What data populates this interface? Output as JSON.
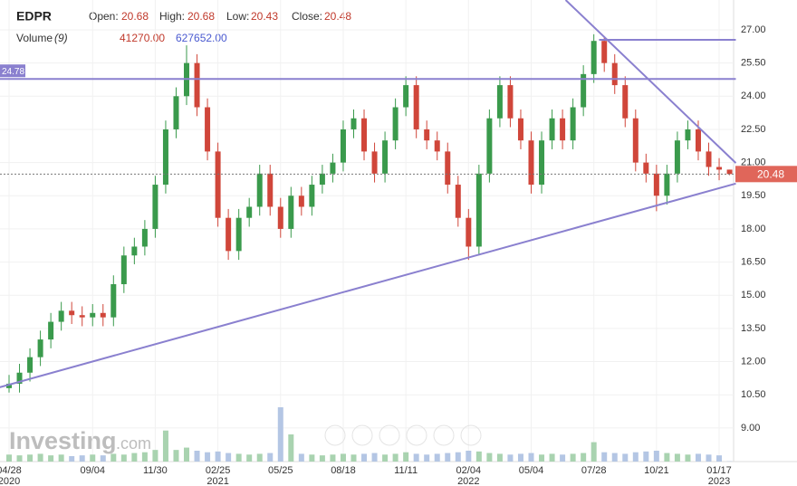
{
  "chart_data": {
    "type": "candlestick",
    "symbol": "EDPR",
    "header_labels": {
      "open": "Open:",
      "high": "High:",
      "low": "Low:",
      "close": "Close:",
      "volume": "Volume",
      "volume_period": "(9)"
    },
    "volume_header": [
      {
        "value": 41270,
        "label": "41270.00"
      },
      {
        "value": 627652,
        "label": "627652.00"
      }
    ],
    "watermark": [
      "Investing",
      ".com"
    ],
    "categories": [
      "04/28",
      null,
      null,
      null,
      null,
      null,
      null,
      null,
      "09/04",
      null,
      null,
      null,
      null,
      null,
      "11/30",
      null,
      null,
      null,
      null,
      null,
      "02/25",
      null,
      null,
      null,
      null,
      null,
      "05/25",
      null,
      null,
      null,
      null,
      null,
      "08/18",
      null,
      null,
      null,
      null,
      null,
      "11/11",
      null,
      null,
      null,
      null,
      null,
      "02/04",
      null,
      null,
      null,
      null,
      null,
      "05/04",
      null,
      null,
      null,
      null,
      null,
      "07/28",
      null,
      null,
      null,
      null,
      null,
      "10/21",
      null,
      null,
      null,
      null,
      null,
      "01/17",
      null
    ],
    "years": [
      "2020",
      "2021",
      "2022",
      "2023"
    ],
    "open": [
      10.8,
      11.0,
      11.5,
      12.2,
      13.0,
      13.8,
      14.3,
      14.1,
      14.0,
      14.2,
      14.0,
      15.5,
      16.8,
      17.2,
      18.0,
      20.0,
      22.5,
      24.0,
      25.5,
      23.5,
      21.5,
      18.5,
      17.0,
      18.5,
      19.0,
      20.5,
      19.0,
      18.0,
      19.5,
      19.0,
      20.0,
      20.5,
      21.0,
      22.5,
      23.0,
      21.5,
      20.5,
      22.0,
      23.5,
      24.5,
      22.5,
      22.0,
      21.5,
      20.0,
      18.5,
      17.2,
      20.5,
      23.0,
      24.5,
      23.0,
      22.0,
      20.0,
      22.0,
      23.0,
      22.0,
      23.5,
      25.0,
      26.5,
      25.5,
      24.5,
      23.0,
      21.0,
      20.5,
      19.5,
      20.5,
      22.0,
      22.5,
      21.5,
      20.8,
      20.68
    ],
    "high": [
      11.4,
      11.9,
      12.6,
      13.4,
      14.2,
      14.7,
      14.7,
      14.5,
      14.6,
      14.6,
      15.9,
      17.2,
      17.6,
      18.4,
      20.4,
      22.9,
      24.4,
      26.3,
      25.9,
      23.9,
      21.9,
      18.9,
      18.9,
      19.4,
      20.9,
      20.9,
      19.4,
      19.9,
      19.9,
      20.4,
      20.9,
      21.4,
      22.9,
      23.4,
      23.4,
      21.9,
      22.4,
      23.9,
      24.9,
      24.9,
      22.9,
      22.4,
      21.9,
      20.4,
      18.9,
      20.9,
      23.4,
      24.9,
      24.9,
      23.4,
      22.4,
      22.4,
      23.4,
      23.4,
      23.9,
      25.4,
      26.8,
      26.7,
      25.9,
      24.9,
      23.4,
      21.4,
      20.9,
      20.9,
      22.4,
      22.9,
      22.9,
      21.9,
      21.2,
      20.68
    ],
    "low": [
      10.6,
      10.6,
      11.1,
      11.8,
      12.6,
      13.4,
      13.7,
      13.6,
      13.6,
      13.6,
      13.6,
      15.1,
      16.4,
      16.8,
      17.6,
      19.6,
      22.1,
      23.6,
      23.1,
      21.1,
      18.1,
      16.6,
      16.6,
      18.1,
      18.6,
      18.6,
      17.6,
      17.6,
      18.6,
      18.6,
      19.6,
      20.1,
      20.6,
      22.1,
      21.1,
      20.1,
      20.1,
      21.6,
      23.1,
      22.1,
      21.6,
      21.1,
      19.6,
      18.1,
      16.6,
      16.8,
      20.1,
      22.6,
      22.6,
      21.6,
      19.6,
      19.6,
      21.6,
      21.6,
      21.6,
      23.1,
      24.6,
      25.1,
      24.1,
      22.6,
      20.6,
      20.1,
      18.8,
      19.1,
      20.1,
      21.6,
      21.1,
      20.4,
      20.2,
      20.43
    ],
    "close": [
      11.0,
      11.5,
      12.2,
      13.0,
      13.8,
      14.3,
      14.1,
      14.0,
      14.2,
      14.0,
      15.5,
      16.8,
      17.2,
      18.0,
      20.0,
      22.5,
      24.0,
      25.5,
      23.5,
      21.5,
      18.5,
      17.0,
      18.5,
      19.0,
      20.5,
      19.0,
      18.0,
      19.5,
      19.0,
      20.0,
      20.5,
      21.0,
      22.5,
      23.0,
      21.5,
      20.5,
      22.0,
      23.5,
      24.5,
      22.5,
      22.0,
      21.5,
      20.0,
      18.5,
      17.2,
      20.5,
      23.0,
      24.5,
      23.0,
      22.0,
      20.0,
      22.0,
      23.0,
      22.0,
      23.5,
      25.0,
      26.5,
      25.5,
      24.5,
      23.0,
      21.0,
      20.5,
      19.5,
      20.5,
      22.0,
      22.5,
      21.5,
      20.8,
      20.68,
      20.48
    ],
    "volume": [
      900000,
      800000,
      900000,
      1000000,
      800000,
      900000,
      700000,
      800000,
      900000,
      800000,
      1000000,
      900000,
      1100000,
      1200000,
      1500000,
      4000000,
      1500000,
      1800000,
      1400000,
      1200000,
      1300000,
      1100000,
      1000000,
      900000,
      1000000,
      1100000,
      7000000,
      3500000,
      1000000,
      900000,
      800000,
      900000,
      1000000,
      900000,
      1000000,
      1100000,
      900000,
      1000000,
      1200000,
      1000000,
      900000,
      1000000,
      1100000,
      1200000,
      1400000,
      1300000,
      1100000,
      1000000,
      900000,
      1000000,
      1100000,
      900000,
      1000000,
      900000,
      1000000,
      1100000,
      2500000,
      1200000,
      1100000,
      1000000,
      1200000,
      1300000,
      1400000,
      1100000,
      1000000,
      900000,
      1000000,
      900000,
      800000,
      41270
    ],
    "up_color": "#3a9a4c",
    "down_color": "#d0463a",
    "line_color": "#8a80cf",
    "trend_lines": [
      {
        "start": [
          -0.9,
          24.78
        ],
        "end": [
          69.6,
          24.78
        ]
      },
      {
        "start": [
          56.5,
          26.55
        ],
        "end": [
          69.6,
          26.55
        ]
      },
      {
        "start": [
          -0.9,
          10.84
        ],
        "end": [
          69.6,
          20.05
        ]
      },
      {
        "start": [
          53.3,
          28.35
        ],
        "end": [
          69.6,
          20.98
        ]
      }
    ],
    "ylim": [
      7.48,
      28.35
    ],
    "yticks": [
      {
        "value": 27,
        "label": "27.00"
      },
      {
        "value": 25.5,
        "label": "25.50"
      },
      {
        "value": 24,
        "label": "24.00"
      },
      {
        "value": 22.5,
        "label": "22.50"
      },
      {
        "value": 21,
        "label": "21.00"
      },
      {
        "value": 19.5,
        "label": "19.50"
      },
      {
        "value": 18,
        "label": "18.00"
      },
      {
        "value": 16.5,
        "label": "16.50"
      },
      {
        "value": 15,
        "label": "15.00"
      },
      {
        "value": 13.5,
        "label": "13.50"
      },
      {
        "value": 12,
        "label": "12.00"
      },
      {
        "value": 10.5,
        "label": "10.50"
      },
      {
        "value": 9,
        "label": "9.00"
      }
    ],
    "grid": true
  }
}
